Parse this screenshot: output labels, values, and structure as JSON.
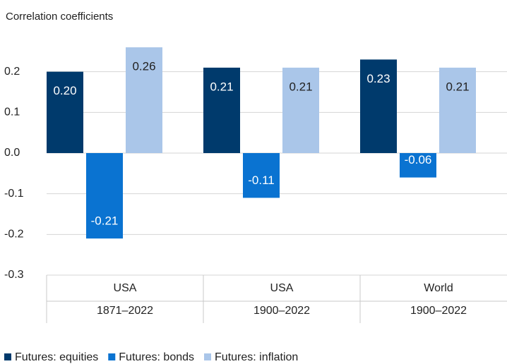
{
  "chart_data": {
    "type": "bar",
    "title": "Correlation coefficients",
    "categories": [
      [
        "USA",
        "1871–2022"
      ],
      [
        "USA",
        "1900–2022"
      ],
      [
        "World",
        "1900–2022"
      ]
    ],
    "series": [
      {
        "name": "Futures: equities",
        "color": "#003a6c",
        "values": [
          0.2,
          0.21,
          0.23
        ],
        "value_labels": [
          "0.20",
          "0.21",
          "0.23"
        ]
      },
      {
        "name": "Futures: bonds",
        "color": "#0a73d1",
        "values": [
          -0.21,
          -0.11,
          -0.06
        ],
        "value_labels": [
          "-0.21",
          "-0.11",
          "-0.06"
        ]
      },
      {
        "name": "Futures: inflation",
        "color": "#aac6e9",
        "values": [
          0.26,
          0.21,
          0.21
        ],
        "value_labels": [
          "0.26",
          "0.21",
          "0.21"
        ]
      }
    ],
    "ylim": [
      -0.3,
      0.3
    ],
    "yticks": [
      0.2,
      0.1,
      {
        "value": 0,
        "label": "0.0"
      },
      -0.1,
      -0.2,
      -0.3
    ],
    "grid": true
  }
}
